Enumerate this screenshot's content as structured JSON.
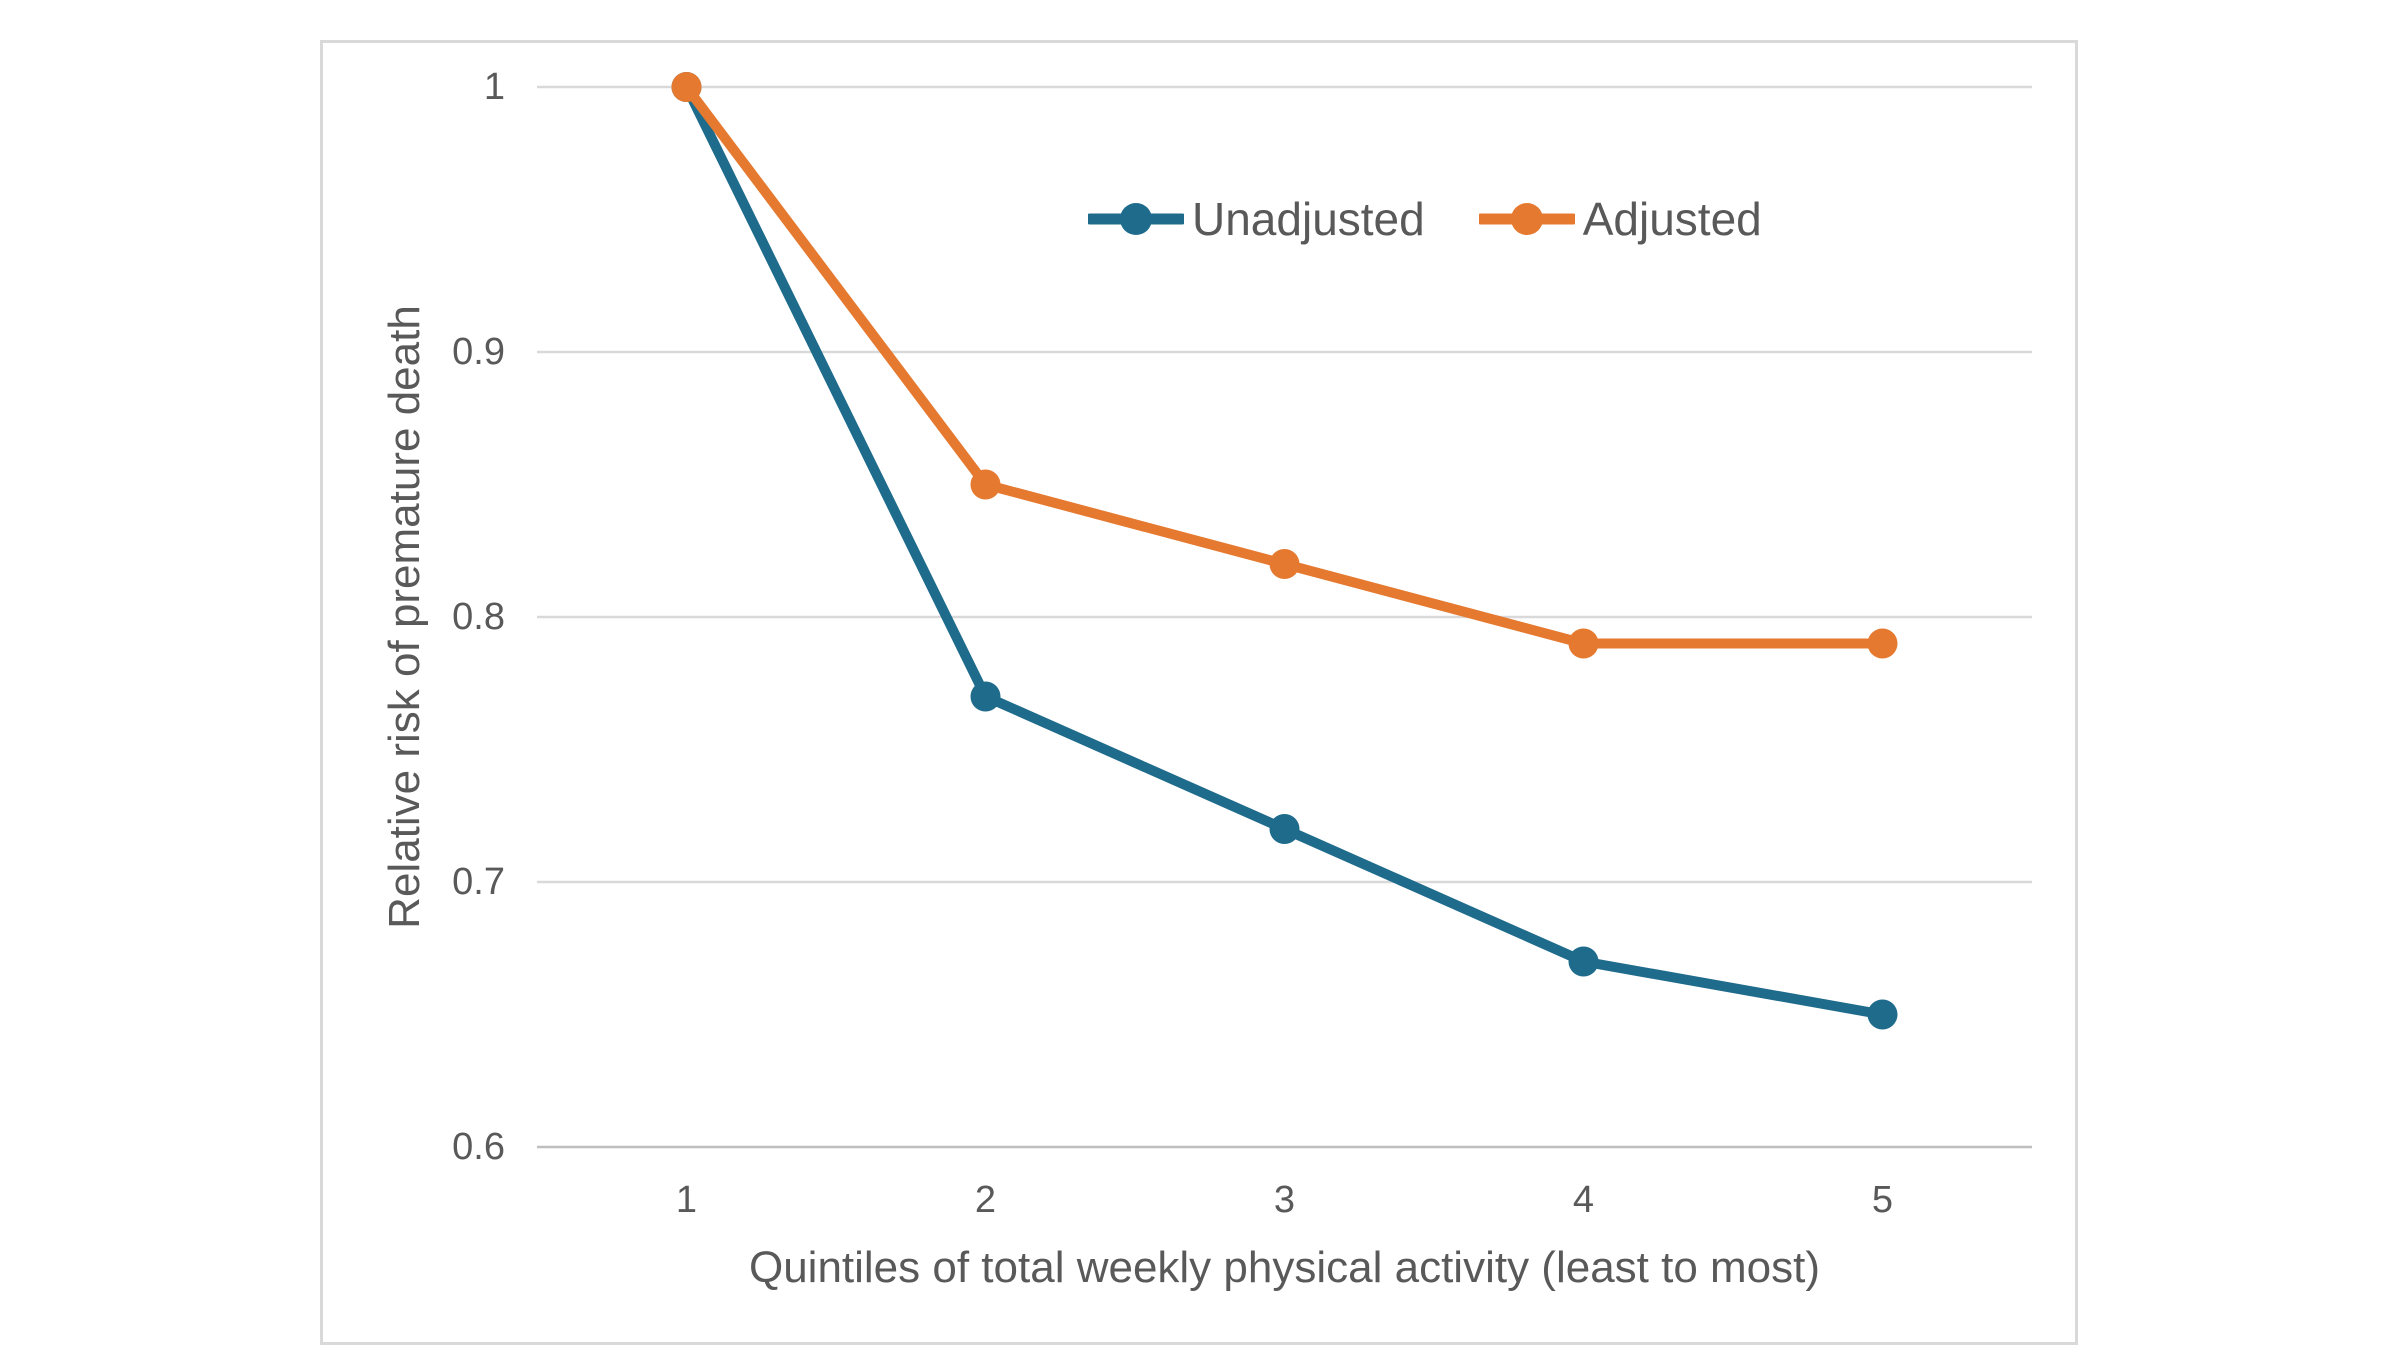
{
  "chart_data": {
    "type": "line",
    "categories": [
      "1",
      "2",
      "3",
      "4",
      "5"
    ],
    "series": [
      {
        "name": "Unadjusted",
        "values": [
          1.0,
          0.77,
          0.72,
          0.67,
          0.65
        ],
        "color": "#1E6B8C"
      },
      {
        "name": "Adjusted",
        "values": [
          1.0,
          0.85,
          0.82,
          0.79,
          0.79
        ],
        "color": "#E5792F"
      }
    ],
    "title": "",
    "xlabel": "Quintiles of total weekly physical activity (least to most)",
    "ylabel": "Relative risk of premature death",
    "y_ticks": [
      1,
      0.9,
      0.8,
      0.7,
      0.6
    ],
    "y_tick_labels": [
      "1",
      "0.9",
      "0.8",
      "0.7",
      "0.6"
    ],
    "ylim": [
      0.6,
      1.0
    ],
    "grid": true,
    "legend_position": "inside-top-right",
    "marker": "circle"
  },
  "styles": {
    "text_color": "#595959",
    "gridline_color": "#d9d9d9",
    "axis_line_color": "#bfbfbf",
    "chart_border_color": "#d9d9d9",
    "background": "#ffffff"
  }
}
